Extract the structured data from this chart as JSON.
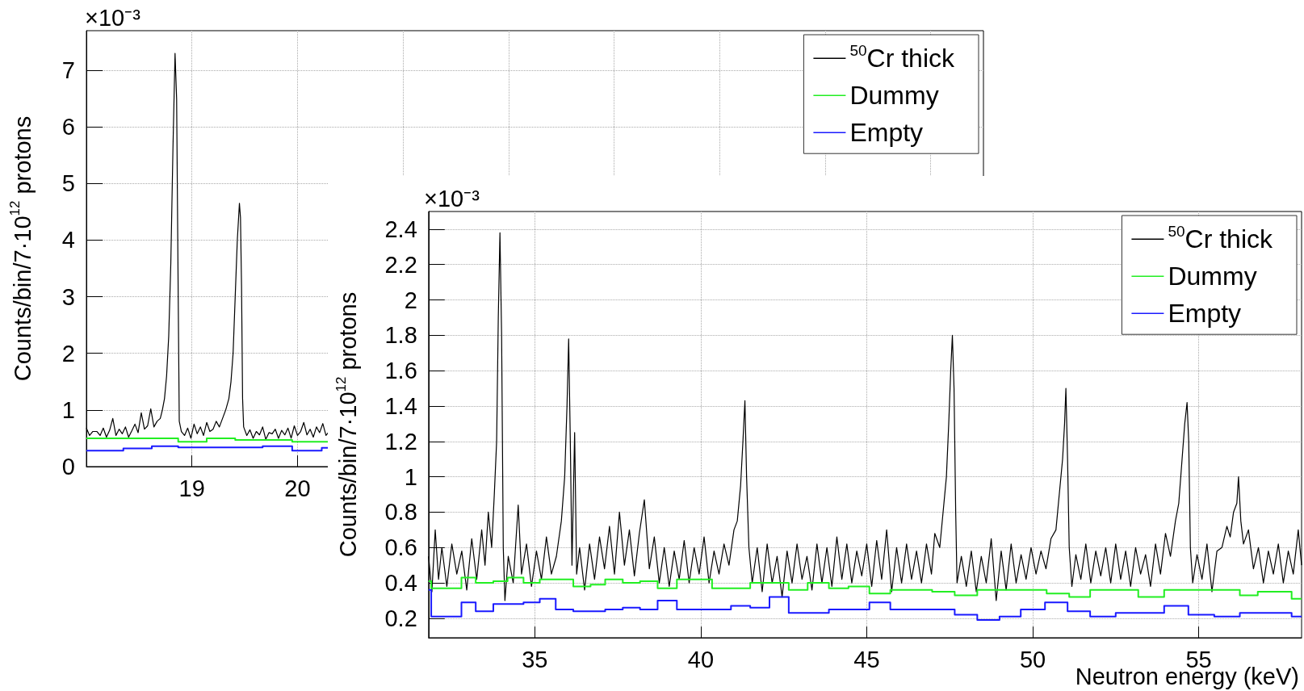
{
  "chart_data": [
    {
      "type": "line",
      "ylabel": "Counts/bin/7·10$^{12}$ protons",
      "annotations": [
        "×10⁻³"
      ],
      "xlim": [
        18.0,
        26.5
      ],
      "xticks": [
        19,
        20,
        {
          "value": 21,
          "label": null
        },
        {
          "value": 22,
          "label": null
        },
        {
          "value": 23,
          "label": null
        },
        {
          "value": 24,
          "label": null
        },
        {
          "value": 25,
          "label": null
        },
        {
          "value": 26,
          "label": null
        }
      ],
      "ylim": [
        0,
        7.7
      ],
      "yticks": [
        0,
        1,
        2,
        3,
        4,
        5,
        6,
        7
      ],
      "grid": true,
      "legend": "top right",
      "marker": "none",
      "series": [
        {
          "name": "$^{50}$Cr thick",
          "color": "#000000",
          "type": "line",
          "x": [
            18.0,
            18.03,
            18.06,
            18.1,
            18.13,
            18.16,
            18.19,
            18.22,
            18.25,
            18.28,
            18.31,
            18.34,
            18.37,
            18.4,
            18.43,
            18.46,
            18.49,
            18.52,
            18.55,
            18.58,
            18.61,
            18.64,
            18.67,
            18.7,
            18.72,
            18.74,
            18.76,
            18.78,
            18.8,
            18.82,
            18.84,
            18.855,
            18.87,
            18.88,
            18.9,
            18.93,
            18.96,
            18.99,
            19.02,
            19.05,
            19.08,
            19.11,
            19.14,
            19.17,
            19.2,
            19.23,
            19.26,
            19.29,
            19.32,
            19.35,
            19.37,
            19.39,
            19.41,
            19.43,
            19.45,
            19.46,
            19.47,
            19.48,
            19.49,
            19.52,
            19.55,
            19.58,
            19.61,
            19.64,
            19.67,
            19.7,
            19.73,
            19.76,
            19.79,
            19.82,
            19.85,
            19.88,
            19.91,
            19.94,
            19.97,
            20.0,
            20.03,
            20.06,
            20.09,
            20.12,
            20.15,
            20.18,
            20.21,
            20.24,
            20.27,
            20.3
          ],
          "values": [
            0.68,
            0.55,
            0.62,
            0.62,
            0.55,
            0.68,
            0.52,
            0.64,
            0.85,
            0.55,
            0.66,
            0.58,
            0.7,
            0.52,
            0.63,
            0.75,
            0.6,
            0.95,
            0.66,
            0.72,
            1.02,
            0.7,
            0.8,
            0.85,
            1.0,
            1.2,
            1.6,
            2.3,
            3.6,
            5.6,
            7.3,
            6.5,
            3.0,
            0.8,
            0.62,
            0.55,
            0.68,
            0.5,
            0.75,
            0.58,
            0.7,
            0.55,
            0.78,
            0.62,
            0.66,
            0.8,
            0.7,
            0.85,
            1.0,
            1.2,
            1.5,
            2.0,
            3.0,
            4.0,
            4.65,
            4.4,
            3.2,
            1.2,
            0.7,
            0.55,
            0.65,
            0.5,
            0.62,
            0.56,
            0.7,
            0.48,
            0.6,
            0.58,
            0.66,
            0.5,
            0.64,
            0.56,
            0.68,
            0.5,
            0.72,
            0.55,
            0.62,
            0.78,
            0.56,
            0.66,
            0.52,
            0.7,
            0.6,
            0.76,
            0.55,
            0.62
          ]
        },
        {
          "name": "Dummy",
          "color": "#22ee22",
          "type": "step",
          "x": [
            18.0,
            18.87,
            19.14,
            19.41,
            19.95,
            20.3
          ],
          "values": [
            0.5,
            0.44,
            0.5,
            0.47,
            0.44,
            0.44
          ]
        },
        {
          "name": "Empty",
          "color": "#1a1aff",
          "type": "step",
          "x": [
            18.0,
            18.35,
            18.62,
            18.87,
            19.67,
            19.95,
            20.23,
            20.3
          ],
          "values": [
            0.28,
            0.32,
            0.36,
            0.34,
            0.36,
            0.28,
            0.33,
            0.33
          ]
        }
      ]
    },
    {
      "type": "line",
      "ylabel": "Counts/bin/7·10$^{12}$ protons",
      "xlabel": "Neutron energy (keV)",
      "annotations": [
        "×10⁻³"
      ],
      "xlim": [
        31.8,
        58.1
      ],
      "xticks": [
        35,
        40,
        45,
        50,
        55
      ],
      "ylim": [
        0.09,
        2.5
      ],
      "yticks": [
        0.2,
        0.4,
        0.6,
        0.8,
        1,
        1.2,
        1.4,
        1.6,
        1.8,
        2,
        2.2,
        2.4
      ],
      "grid": true,
      "legend": "top right",
      "marker": "none",
      "series": [
        {
          "name": "$^{50}$Cr thick",
          "color": "#000000",
          "type": "line",
          "x": [
            31.8,
            31.9,
            32.0,
            32.1,
            32.2,
            32.35,
            32.5,
            32.65,
            32.8,
            32.95,
            33.1,
            33.25,
            33.4,
            33.5,
            33.6,
            33.7,
            33.78,
            33.85,
            33.9,
            33.95,
            34.0,
            34.05,
            34.1,
            34.2,
            34.35,
            34.5,
            34.6,
            34.75,
            34.9,
            35.05,
            35.2,
            35.35,
            35.5,
            35.65,
            35.8,
            35.9,
            35.97,
            36.02,
            36.07,
            36.12,
            36.2,
            36.26,
            36.35,
            36.5,
            36.65,
            36.8,
            36.95,
            37.1,
            37.25,
            37.4,
            37.55,
            37.7,
            37.85,
            38.0,
            38.15,
            38.3,
            38.45,
            38.6,
            38.75,
            38.9,
            39.05,
            39.2,
            39.35,
            39.5,
            39.65,
            39.8,
            39.95,
            40.1,
            40.25,
            40.4,
            40.55,
            40.7,
            40.85,
            41.0,
            41.1,
            41.2,
            41.27,
            41.33,
            41.38,
            41.45,
            41.55,
            41.7,
            41.85,
            42.0,
            42.15,
            42.3,
            42.45,
            42.6,
            42.75,
            42.9,
            43.05,
            43.2,
            43.35,
            43.5,
            43.65,
            43.8,
            43.95,
            44.1,
            44.25,
            44.4,
            44.55,
            44.7,
            44.85,
            45.0,
            45.15,
            45.3,
            45.45,
            45.6,
            45.75,
            45.9,
            46.05,
            46.2,
            46.35,
            46.5,
            46.65,
            46.8,
            46.95,
            47.05,
            47.2,
            47.3,
            47.4,
            47.47,
            47.53,
            47.58,
            47.63,
            47.68,
            47.72,
            47.85,
            48.0,
            48.15,
            48.3,
            48.45,
            48.6,
            48.75,
            48.9,
            49.05,
            49.2,
            49.35,
            49.5,
            49.65,
            49.8,
            49.95,
            50.1,
            50.25,
            50.4,
            50.55,
            50.7,
            50.8,
            50.9,
            50.96,
            51.0,
            51.05,
            51.1,
            51.18,
            51.3,
            51.45,
            51.6,
            51.75,
            51.9,
            52.05,
            52.2,
            52.35,
            52.5,
            52.65,
            52.8,
            52.95,
            53.1,
            53.25,
            53.4,
            53.55,
            53.7,
            53.85,
            54.0,
            54.15,
            54.3,
            54.4,
            54.5,
            54.58,
            54.65,
            54.7,
            54.75,
            54.82,
            54.95,
            55.1,
            55.25,
            55.4,
            55.55,
            55.7,
            55.85,
            55.95,
            56.05,
            56.15,
            56.2,
            56.27,
            56.35,
            56.5,
            56.65,
            56.8,
            56.95,
            57.1,
            57.25,
            57.4,
            57.55,
            57.7,
            57.85,
            58.0,
            58.1
          ],
          "values": [
            0.55,
            0.35,
            0.7,
            0.42,
            0.6,
            0.38,
            0.62,
            0.45,
            0.58,
            0.36,
            0.65,
            0.42,
            0.7,
            0.5,
            0.8,
            0.6,
            0.9,
            1.2,
            1.9,
            2.38,
            1.8,
            0.6,
            0.3,
            0.55,
            0.4,
            0.84,
            0.45,
            0.62,
            0.38,
            0.58,
            0.42,
            0.66,
            0.45,
            0.55,
            0.75,
            1.0,
            1.4,
            1.78,
            1.2,
            0.5,
            1.25,
            0.45,
            0.6,
            0.36,
            0.62,
            0.42,
            0.66,
            0.48,
            0.72,
            0.45,
            0.8,
            0.5,
            0.7,
            0.44,
            0.68,
            0.87,
            0.48,
            0.66,
            0.4,
            0.6,
            0.38,
            0.58,
            0.42,
            0.64,
            0.4,
            0.6,
            0.45,
            0.66,
            0.4,
            0.58,
            0.45,
            0.62,
            0.5,
            0.7,
            0.75,
            0.95,
            1.2,
            1.43,
            1.0,
            0.6,
            0.4,
            0.6,
            0.35,
            0.62,
            0.4,
            0.55,
            0.32,
            0.58,
            0.4,
            0.62,
            0.42,
            0.55,
            0.36,
            0.62,
            0.4,
            0.6,
            0.38,
            0.66,
            0.42,
            0.62,
            0.4,
            0.58,
            0.44,
            0.62,
            0.38,
            0.64,
            0.42,
            0.7,
            0.35,
            0.6,
            0.4,
            0.62,
            0.42,
            0.58,
            0.4,
            0.62,
            0.45,
            0.68,
            0.6,
            0.8,
            1.0,
            1.3,
            1.6,
            1.8,
            1.5,
            0.8,
            0.4,
            0.55,
            0.38,
            0.58,
            0.35,
            0.55,
            0.4,
            0.65,
            0.3,
            0.58,
            0.36,
            0.62,
            0.4,
            0.56,
            0.42,
            0.6,
            0.45,
            0.58,
            0.48,
            0.65,
            0.7,
            0.9,
            1.1,
            1.3,
            1.5,
            1.1,
            0.6,
            0.38,
            0.56,
            0.42,
            0.62,
            0.4,
            0.58,
            0.44,
            0.6,
            0.4,
            0.62,
            0.42,
            0.58,
            0.38,
            0.6,
            0.45,
            0.56,
            0.38,
            0.62,
            0.45,
            0.68,
            0.55,
            0.75,
            0.85,
            1.1,
            1.3,
            1.42,
            1.2,
            0.6,
            0.4,
            0.56,
            0.42,
            0.62,
            0.35,
            0.58,
            0.6,
            0.72,
            0.66,
            0.8,
            0.85,
            1.0,
            0.75,
            0.62,
            0.7,
            0.48,
            0.6,
            0.4,
            0.58,
            0.45,
            0.62,
            0.4,
            0.58,
            0.45,
            0.7,
            0.5
          ]
        },
        {
          "name": "Dummy",
          "color": "#22ee22",
          "type": "step",
          "x": [
            31.8,
            31.88,
            32.79,
            33.22,
            33.75,
            34.18,
            34.66,
            35.15,
            36.16,
            36.68,
            37.12,
            37.65,
            38.17,
            38.7,
            39.28,
            40.34,
            41.49,
            42.65,
            43.22,
            43.86,
            44.45,
            45.08,
            45.71,
            46.97,
            47.65,
            48.33,
            50.42,
            51.1,
            51.73,
            53.18,
            53.96,
            56.24,
            56.78,
            57.8,
            58.1
          ],
          "values": [
            0.41,
            0.37,
            0.43,
            0.4,
            0.41,
            0.43,
            0.4,
            0.42,
            0.38,
            0.39,
            0.42,
            0.4,
            0.41,
            0.37,
            0.42,
            0.37,
            0.4,
            0.36,
            0.4,
            0.37,
            0.38,
            0.34,
            0.36,
            0.35,
            0.33,
            0.36,
            0.34,
            0.32,
            0.36,
            0.32,
            0.36,
            0.33,
            0.35,
            0.31,
            0.31
          ]
        },
        {
          "name": "Empty",
          "color": "#1a1aff",
          "type": "step",
          "x": [
            31.8,
            31.88,
            32.79,
            33.22,
            33.75,
            34.18,
            34.66,
            35.15,
            35.63,
            36.16,
            37.12,
            37.65,
            38.17,
            38.7,
            39.28,
            40.34,
            40.91,
            41.49,
            42.07,
            42.65,
            43.28,
            43.86,
            45.08,
            45.71,
            47.65,
            48.33,
            49.0,
            49.64,
            50.37,
            51.05,
            51.73,
            52.5,
            53.96,
            54.69,
            55.47,
            56.24,
            57.8,
            58.1
          ],
          "values": [
            0.36,
            0.21,
            0.29,
            0.24,
            0.28,
            0.28,
            0.29,
            0.31,
            0.25,
            0.24,
            0.25,
            0.26,
            0.25,
            0.3,
            0.25,
            0.25,
            0.27,
            0.26,
            0.32,
            0.23,
            0.23,
            0.25,
            0.29,
            0.25,
            0.22,
            0.19,
            0.21,
            0.25,
            0.29,
            0.24,
            0.21,
            0.23,
            0.27,
            0.22,
            0.21,
            0.23,
            0.21,
            0.21
          ]
        }
      ]
    }
  ]
}
